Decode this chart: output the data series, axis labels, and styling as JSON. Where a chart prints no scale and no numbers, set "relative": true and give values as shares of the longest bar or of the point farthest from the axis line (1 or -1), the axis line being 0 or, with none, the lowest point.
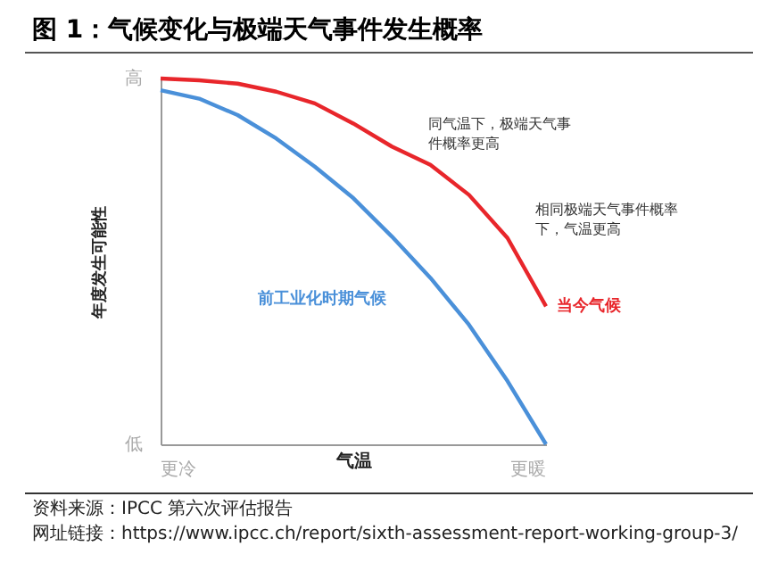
{
  "chart_data": {
    "type": "line",
    "title": "图 1：气候变化与极端天气事件发生概率",
    "xlabel": "气温",
    "ylabel": "年度发生可能性",
    "relative": true,
    "categories": [
      null,
      null,
      null,
      null,
      null,
      null,
      null,
      null,
      null,
      null,
      null
    ],
    "series": [
      {
        "name": "当今气候",
        "color": "#e8262b",
        "values": [
          1,
          0.995,
          0.986,
          0.964,
          0.932,
          0.877,
          0.814,
          0.764,
          0.682,
          0.564,
          0.377
        ]
      },
      {
        "name": "前工业化时期气候",
        "color": "#4a90d9",
        "values": [
          0.968,
          0.945,
          0.9,
          0.836,
          0.759,
          0.673,
          0.568,
          0.455,
          0.327,
          0.173,
          0
        ]
      }
    ],
    "annotations": [
      "高",
      "低",
      "更冷",
      "更暖",
      "同气温下，极端天气事件概率更高",
      "相同极端天气事件概率下，气温更高",
      "资料来源：IPCC 第六次评估报告",
      "网址链接：https://www.ipcc.ch/report/sixth-assessment-report-working-group-3/"
    ]
  }
}
